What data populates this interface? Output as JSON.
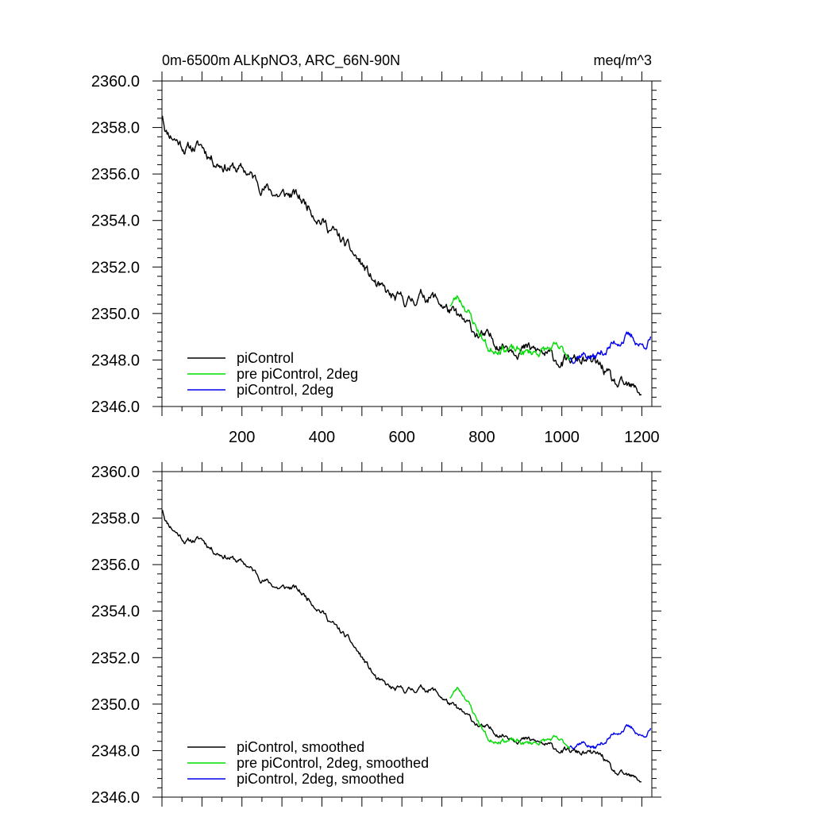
{
  "figure": {
    "title_left": "0m-6500m ALKpNO3, ARC_66N-90N",
    "title_right": "meq/m^3"
  },
  "colors": {
    "piControl": "#000000",
    "pre_piControl_2deg": "#00dd00",
    "piControl_2deg": "#0000ee"
  },
  "chart_data": [
    {
      "type": "line",
      "title": "0m-6500m ALKpNO3, ARC_66N-90N",
      "units": "meq/m^3",
      "xlim": [
        0,
        1225
      ],
      "ylim": [
        2346.0,
        2360.0
      ],
      "x_ticks": [
        200,
        400,
        600,
        800,
        1000,
        1200
      ],
      "x_tick_labels": [
        "200",
        "400",
        "600",
        "800",
        "1000",
        "1200"
      ],
      "y_ticks": [
        2346.0,
        2348.0,
        2350.0,
        2352.0,
        2354.0,
        2356.0,
        2358.0,
        2360.0
      ],
      "y_tick_labels": [
        "2346.0",
        "2348.0",
        "2350.0",
        "2352.0",
        "2354.0",
        "2356.0",
        "2358.0",
        "2360.0"
      ],
      "legend": {
        "position": "bottom-left",
        "entries": [
          "piControl",
          "pre piControl, 2deg",
          "piControl, 2deg"
        ]
      },
      "series": [
        {
          "name": "piControl",
          "color": "#000000",
          "noise": 0.35,
          "seed": 11,
          "points": [
            [
              1,
              2358.6
            ],
            [
              10,
              2357.9
            ],
            [
              30,
              2357.6
            ],
            [
              60,
              2357.1
            ],
            [
              100,
              2357.2
            ],
            [
              130,
              2356.6
            ],
            [
              170,
              2356.3
            ],
            [
              210,
              2356.1
            ],
            [
              250,
              2355.5
            ],
            [
              290,
              2355.1
            ],
            [
              330,
              2355.1
            ],
            [
              370,
              2354.6
            ],
            [
              400,
              2354.0
            ],
            [
              430,
              2353.5
            ],
            [
              470,
              2352.7
            ],
            [
              500,
              2352.1
            ],
            [
              540,
              2351.1
            ],
            [
              580,
              2350.6
            ],
            [
              620,
              2350.5
            ],
            [
              650,
              2350.8
            ],
            [
              680,
              2350.7
            ],
            [
              720,
              2350.1
            ],
            [
              760,
              2349.5
            ],
            [
              800,
              2349.0
            ],
            [
              850,
              2348.7
            ],
            [
              900,
              2348.5
            ],
            [
              950,
              2348.3
            ],
            [
              1000,
              2347.9
            ],
            [
              1050,
              2348.0
            ],
            [
              1100,
              2347.7
            ],
            [
              1130,
              2346.9
            ],
            [
              1160,
              2346.8
            ],
            [
              1200,
              2346.6
            ]
          ]
        },
        {
          "name": "pre piControl, 2deg",
          "color": "#00dd00",
          "noise": 0.28,
          "seed": 23,
          "points": [
            [
              720,
              2350.4
            ],
            [
              740,
              2350.7
            ],
            [
              760,
              2350.3
            ],
            [
              780,
              2349.6
            ],
            [
              800,
              2349.0
            ],
            [
              820,
              2348.4
            ],
            [
              850,
              2348.6
            ],
            [
              880,
              2348.4
            ],
            [
              910,
              2348.3
            ],
            [
              950,
              2348.4
            ],
            [
              980,
              2348.5
            ],
            [
              1020,
              2348.2
            ]
          ]
        },
        {
          "name": "piControl, 2deg",
          "color": "#0000ee",
          "noise": 0.28,
          "seed": 37,
          "points": [
            [
              1020,
              2348.1
            ],
            [
              1050,
              2348.3
            ],
            [
              1080,
              2348.1
            ],
            [
              1100,
              2348.3
            ],
            [
              1130,
              2348.7
            ],
            [
              1160,
              2349.0
            ],
            [
              1180,
              2348.9
            ],
            [
              1200,
              2348.6
            ],
            [
              1222,
              2348.9
            ]
          ]
        }
      ]
    },
    {
      "type": "line",
      "xlim": [
        0,
        1225
      ],
      "ylim": [
        2346.0,
        2360.0
      ],
      "y_ticks": [
        2346.0,
        2348.0,
        2350.0,
        2352.0,
        2354.0,
        2356.0,
        2358.0,
        2360.0
      ],
      "y_tick_labels": [
        "2346.0",
        "2348.0",
        "2350.0",
        "2352.0",
        "2354.0",
        "2356.0",
        "2358.0",
        "2360.0"
      ],
      "legend": {
        "position": "bottom-left",
        "entries": [
          "piControl, smoothed",
          "pre piControl, 2deg, smoothed",
          "piControl, 2deg, smoothed"
        ]
      },
      "series": [
        {
          "name": "piControl, smoothed",
          "color": "#000000",
          "noise": 0.18,
          "seed": 11,
          "points": [
            [
              1,
              2358.4
            ],
            [
              10,
              2357.9
            ],
            [
              30,
              2357.5
            ],
            [
              60,
              2357.0
            ],
            [
              100,
              2357.1
            ],
            [
              130,
              2356.6
            ],
            [
              170,
              2356.3
            ],
            [
              210,
              2356.0
            ],
            [
              250,
              2355.4
            ],
            [
              290,
              2355.0
            ],
            [
              330,
              2355.0
            ],
            [
              370,
              2354.5
            ],
            [
              400,
              2354.0
            ],
            [
              430,
              2353.4
            ],
            [
              470,
              2352.7
            ],
            [
              500,
              2352.0
            ],
            [
              540,
              2351.0
            ],
            [
              580,
              2350.6
            ],
            [
              620,
              2350.6
            ],
            [
              650,
              2350.7
            ],
            [
              680,
              2350.6
            ],
            [
              720,
              2350.0
            ],
            [
              760,
              2349.5
            ],
            [
              800,
              2349.0
            ],
            [
              850,
              2348.7
            ],
            [
              900,
              2348.5
            ],
            [
              950,
              2348.3
            ],
            [
              1000,
              2348.0
            ],
            [
              1050,
              2347.9
            ],
            [
              1100,
              2347.8
            ],
            [
              1130,
              2347.0
            ],
            [
              1160,
              2346.9
            ],
            [
              1200,
              2346.7
            ]
          ]
        },
        {
          "name": "pre piControl, 2deg, smoothed",
          "color": "#00dd00",
          "noise": 0.16,
          "seed": 23,
          "points": [
            [
              720,
              2350.3
            ],
            [
              740,
              2350.7
            ],
            [
              760,
              2350.3
            ],
            [
              780,
              2349.6
            ],
            [
              800,
              2349.0
            ],
            [
              820,
              2348.4
            ],
            [
              850,
              2348.5
            ],
            [
              880,
              2348.4
            ],
            [
              910,
              2348.3
            ],
            [
              950,
              2348.4
            ],
            [
              980,
              2348.5
            ],
            [
              1020,
              2348.2
            ]
          ]
        },
        {
          "name": "piControl, 2deg, smoothed",
          "color": "#0000ee",
          "noise": 0.16,
          "seed": 37,
          "points": [
            [
              1020,
              2348.2
            ],
            [
              1050,
              2348.4
            ],
            [
              1080,
              2348.1
            ],
            [
              1100,
              2348.3
            ],
            [
              1130,
              2348.7
            ],
            [
              1160,
              2349.0
            ],
            [
              1180,
              2348.9
            ],
            [
              1200,
              2348.6
            ],
            [
              1222,
              2348.9
            ]
          ]
        }
      ]
    }
  ]
}
